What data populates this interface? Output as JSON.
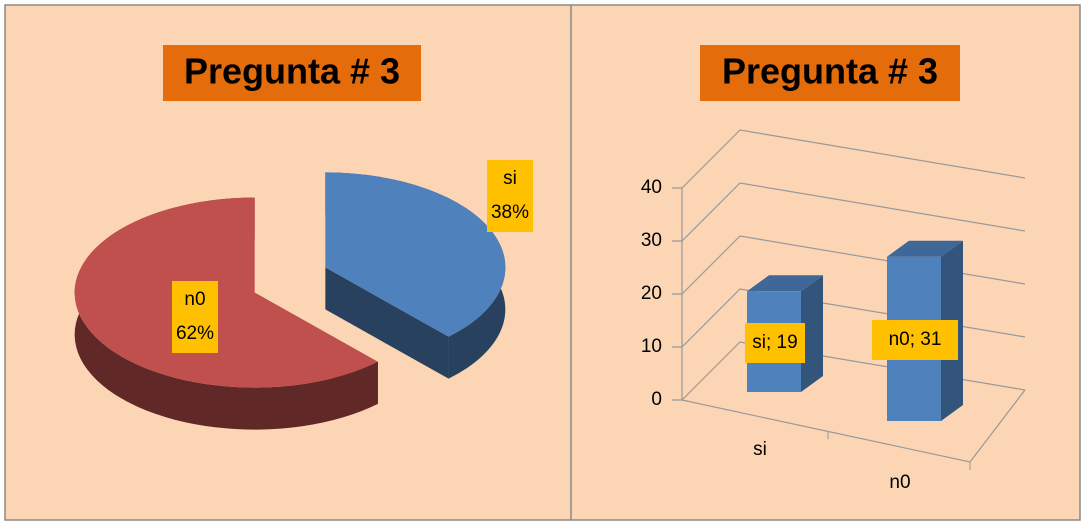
{
  "chart_data": [
    {
      "type": "pie",
      "title": "Pregunta # 3",
      "categories": [
        "si",
        "n0"
      ],
      "values": [
        38,
        62
      ],
      "value_labels": [
        "38%",
        "62%"
      ],
      "colors": [
        "#4f81bd",
        "#c0504d"
      ]
    },
    {
      "type": "bar",
      "title": "Pregunta # 3",
      "categories": [
        "si",
        "n0"
      ],
      "values": [
        19,
        31
      ],
      "value_labels": [
        "si; 19",
        "n0; 31"
      ],
      "color": "#4f81bd",
      "ylim": [
        0,
        40
      ],
      "yticks": [
        0,
        10,
        20,
        30,
        40
      ],
      "grid": true
    }
  ]
}
